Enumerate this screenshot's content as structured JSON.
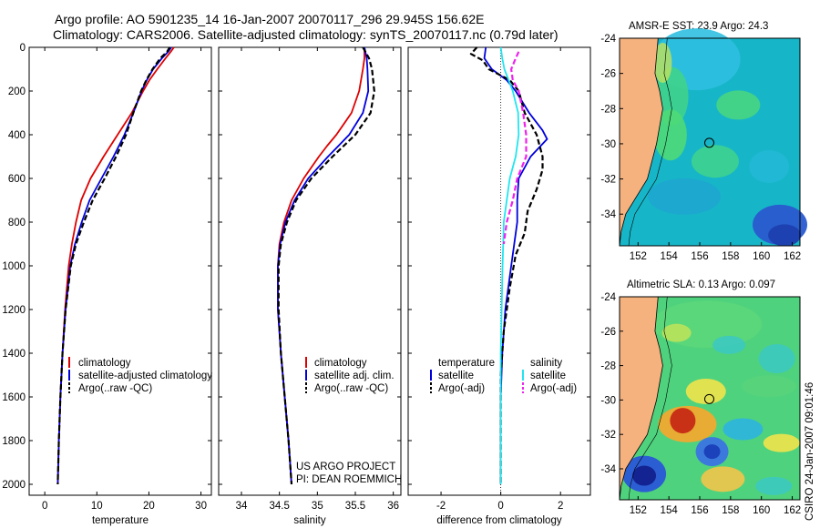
{
  "figure": {
    "title_line1": "Argo profile: AO 5901235_14 16-Jan-2007 20070117_296 29.945S 156.62E",
    "title_line2": "Climatology: CARS2006. Satellite-adjusted climatology: synTS_20070117.nc (0.79d later)",
    "credit_line1": "US ARGO PROJECT",
    "credit_line2": "PI: DEAN ROEMMICH",
    "footer_vertical": "CSIRO 24-Jan-2007 09:01:46"
  },
  "colors": {
    "climatology": "#dd0000",
    "satellite": "#0000dd",
    "argo": "#000000",
    "sal_satellite": "#22e5f0",
    "sal_argo": "#ee22ee",
    "land": "#f5b27f"
  },
  "chart_data": [
    {
      "id": "temperature",
      "type": "line",
      "xlabel": "temperature",
      "ylabel": "",
      "xlim": [
        -3,
        32
      ],
      "ylim": [
        0,
        2050
      ],
      "xticks": [
        0,
        10,
        20,
        30
      ],
      "yticks": [
        0,
        200,
        400,
        600,
        800,
        1000,
        1200,
        1400,
        1600,
        1800,
        2000
      ],
      "legend": [
        "climatology",
        "satellite-adjusted climatology",
        "Argo(..raw -QC)"
      ],
      "series": [
        {
          "name": "climatology",
          "color": "#dd0000",
          "dash": "",
          "depth": [
            0,
            20,
            50,
            100,
            150,
            200,
            300,
            400,
            500,
            600,
            700,
            800,
            900,
            1000,
            1200,
            1400,
            1600,
            1800,
            2000
          ],
          "values": [
            24.8,
            24.2,
            23.2,
            21.6,
            20.1,
            18.9,
            16.7,
            14.0,
            11.3,
            8.8,
            7.0,
            6.0,
            5.2,
            4.6,
            3.9,
            3.4,
            3.0,
            2.7,
            2.5
          ]
        },
        {
          "name": "satellite",
          "color": "#0000dd",
          "dash": "",
          "depth": [
            0,
            20,
            50,
            100,
            150,
            200,
            300,
            400,
            500,
            600,
            700,
            800,
            900,
            1000,
            1200,
            1400,
            1600,
            1800,
            2000
          ],
          "values": [
            24.3,
            23.7,
            22.5,
            20.8,
            19.6,
            18.6,
            17.0,
            15.3,
            13.2,
            10.9,
            8.6,
            7.1,
            5.8,
            4.9,
            4.0,
            3.4,
            3.0,
            2.7,
            2.5
          ]
        },
        {
          "name": "argo",
          "color": "#000000",
          "dash": "6,3",
          "depth": [
            0,
            20,
            50,
            100,
            150,
            200,
            300,
            400,
            500,
            600,
            700,
            800,
            900,
            1000,
            1200,
            1400,
            1600,
            1800,
            2000
          ],
          "values": [
            24.0,
            23.5,
            22.2,
            20.7,
            19.5,
            18.5,
            17.0,
            15.6,
            13.7,
            11.5,
            9.2,
            7.5,
            6.0,
            5.0,
            4.0,
            3.4,
            3.0,
            2.7,
            2.5
          ]
        }
      ]
    },
    {
      "id": "salinity",
      "type": "line",
      "xlabel": "salinity",
      "ylabel": "",
      "xlim": [
        33.7,
        36.1
      ],
      "ylim": [
        0,
        2050
      ],
      "xticks": [
        34,
        34.5,
        35,
        35.5,
        36
      ],
      "legend": [
        "climatology",
        "satellite adj. clim.",
        "Argo(..raw -QC)"
      ],
      "series": [
        {
          "name": "climatology",
          "color": "#dd0000",
          "dash": "",
          "depth": [
            0,
            50,
            100,
            200,
            300,
            400,
            450,
            500,
            600,
            700,
            800,
            900,
            1000,
            1200,
            1400,
            1600,
            1800,
            2000
          ],
          "values": [
            35.62,
            35.62,
            35.6,
            35.55,
            35.45,
            35.25,
            35.13,
            35.02,
            34.82,
            34.66,
            34.56,
            34.5,
            34.48,
            34.48,
            34.52,
            34.57,
            34.62,
            34.66
          ]
        },
        {
          "name": "satellite",
          "color": "#0000dd",
          "dash": "",
          "depth": [
            0,
            50,
            100,
            200,
            300,
            400,
            450,
            500,
            600,
            700,
            800,
            900,
            1000,
            1200,
            1400,
            1600,
            1800,
            2000
          ],
          "values": [
            35.62,
            35.65,
            35.66,
            35.67,
            35.6,
            35.42,
            35.28,
            35.14,
            34.88,
            34.7,
            34.58,
            34.51,
            34.48,
            34.48,
            34.52,
            34.57,
            34.62,
            34.66
          ]
        },
        {
          "name": "argo",
          "color": "#000000",
          "dash": "6,3",
          "depth": [
            0,
            50,
            100,
            200,
            300,
            400,
            450,
            500,
            600,
            700,
            800,
            900,
            1000,
            1200,
            1400,
            1600,
            1800,
            2000
          ],
          "values": [
            35.6,
            35.68,
            35.72,
            35.75,
            35.7,
            35.5,
            35.35,
            35.2,
            34.92,
            34.72,
            34.6,
            34.52,
            34.49,
            34.49,
            34.52,
            34.57,
            34.62,
            34.66
          ]
        }
      ]
    },
    {
      "id": "difference",
      "type": "line",
      "xlabel": "difference from climatology",
      "ylabel": "",
      "xlim": [
        -3.1,
        3.0
      ],
      "ylim": [
        0,
        2050
      ],
      "xticks": [
        -2,
        0,
        2
      ],
      "legend_left_title": "temperature",
      "legend_right_title": "salinity",
      "legend_left": [
        "satellite",
        "Argo(-adj)"
      ],
      "legend_right": [
        "satellite",
        "Argo(-adj)"
      ],
      "series": [
        {
          "name": "temp satellite",
          "color": "#0000dd",
          "dash": "",
          "depth": [
            0,
            50,
            100,
            150,
            200,
            300,
            380,
            420,
            500,
            600,
            700,
            800,
            900,
            1000,
            1200,
            1400,
            1600,
            1800,
            2000
          ],
          "values": [
            -0.5,
            -0.55,
            -0.3,
            0.2,
            0.5,
            0.95,
            1.4,
            1.55,
            1.0,
            0.6,
            0.55,
            0.55,
            0.45,
            0.35,
            0.15,
            0.05,
            0.0,
            0.0,
            0.0
          ]
        },
        {
          "name": "temp argo",
          "color": "#000000",
          "dash": "6,3",
          "depth": [
            0,
            30,
            60,
            100,
            150,
            200,
            300,
            400,
            500,
            560,
            650,
            750,
            850,
            950,
            1100,
            1300,
            1500,
            1700,
            2000
          ],
          "values": [
            -0.8,
            -1.0,
            -0.6,
            -0.4,
            0.3,
            0.6,
            0.8,
            1.2,
            1.4,
            1.4,
            1.2,
            0.9,
            0.8,
            0.5,
            0.3,
            0.1,
            0.0,
            0.0,
            0.0
          ]
        },
        {
          "name": "sal satellite",
          "color": "#22e5f0",
          "dash": "",
          "depth": [
            0,
            50,
            100,
            200,
            300,
            400,
            500,
            600,
            700,
            800,
            900,
            1000,
            1200,
            1400,
            1600,
            1800,
            2000
          ],
          "values": [
            0.0,
            0.05,
            0.12,
            0.4,
            0.58,
            0.6,
            0.5,
            0.3,
            0.2,
            0.1,
            0.08,
            0.06,
            0.03,
            0.0,
            0.0,
            0.0,
            0.0
          ]
        },
        {
          "name": "sal argo",
          "color": "#ee22ee",
          "dash": "6,3",
          "depth": [
            20,
            50,
            100,
            150,
            200,
            300,
            400,
            500,
            600,
            700,
            800,
            900
          ],
          "values": [
            0.6,
            0.5,
            0.35,
            0.4,
            0.6,
            0.75,
            0.85,
            0.85,
            0.55,
            0.4,
            0.2,
            0.1
          ]
        }
      ]
    }
  ],
  "maps": [
    {
      "id": "sst-map",
      "title": "AMSR-E SST: 23.9 Argo: 24.3",
      "yticks": [
        "-24",
        "-26",
        "-28",
        "-30",
        "-32",
        "-34"
      ],
      "xticks": [
        "152",
        "154",
        "156",
        "158",
        "160",
        "162"
      ],
      "marker": "float position"
    },
    {
      "id": "sla-map",
      "title": "Altimetric SLA: 0.13 Argo: 0.097",
      "yticks": [
        "-24",
        "-26",
        "-28",
        "-30",
        "-32",
        "-34"
      ],
      "xticks": [
        "152",
        "154",
        "156",
        "158",
        "160",
        "162"
      ],
      "marker": "float position"
    }
  ]
}
